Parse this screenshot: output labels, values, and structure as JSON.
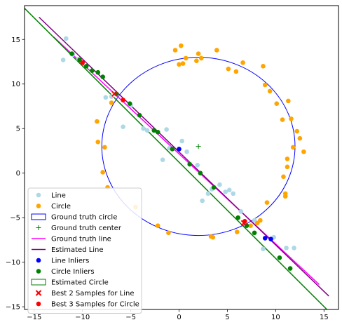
{
  "chart_data": {
    "type": "scatter",
    "title": "",
    "xlabel": "",
    "ylabel": "",
    "xlim": [
      -16,
      16.5
    ],
    "ylim": [
      -15.3,
      18.8
    ],
    "xticks": [
      -15,
      -10,
      -5,
      0,
      5,
      10,
      15
    ],
    "yticks": [
      -15,
      -10,
      -5,
      0,
      5,
      10,
      15
    ],
    "grid": false,
    "legend_position": "lower-left",
    "series": [
      {
        "name": "Line",
        "kind": "scatter",
        "color": "#add8e6",
        "marker": "circle",
        "points": [
          [
            -11.7,
            15.1
          ],
          [
            -12.0,
            12.7
          ],
          [
            -11.0,
            13.3
          ],
          [
            -10.4,
            12.8
          ],
          [
            -7.6,
            8.5
          ],
          [
            -7.0,
            8.6
          ],
          [
            -5.8,
            5.2
          ],
          [
            -5.0,
            7.6
          ],
          [
            -3.7,
            5.0
          ],
          [
            -3.3,
            4.8
          ],
          [
            -1.3,
            4.9
          ],
          [
            -1.0,
            2.8
          ],
          [
            -1.7,
            1.5
          ],
          [
            0.3,
            3.6
          ],
          [
            0.8,
            2.4
          ],
          [
            1.9,
            0.9
          ],
          [
            2.4,
            -3.1
          ],
          [
            3.4,
            -1.8
          ],
          [
            3.0,
            -2.3
          ],
          [
            4.2,
            -1.3
          ],
          [
            4.8,
            -2.1
          ],
          [
            5.2,
            -1.9
          ],
          [
            5.6,
            -2.3
          ],
          [
            6.4,
            -4.3
          ],
          [
            7.8,
            -5.3
          ],
          [
            8.7,
            -8.5
          ],
          [
            9.8,
            -7.2
          ],
          [
            11.1,
            -8.4
          ],
          [
            11.9,
            -8.4
          ]
        ]
      },
      {
        "name": "Circle",
        "kind": "scatter",
        "color": "#ffa500",
        "marker": "circle",
        "points": [
          [
            -0.4,
            13.8
          ],
          [
            0.2,
            14.3
          ],
          [
            2.0,
            13.4
          ],
          [
            3.9,
            13.8
          ],
          [
            0.7,
            12.9
          ],
          [
            0.4,
            12.3
          ],
          [
            0.0,
            12.2
          ],
          [
            1.8,
            12.6
          ],
          [
            2.3,
            12.9
          ],
          [
            5.1,
            11.7
          ],
          [
            5.9,
            11.4
          ],
          [
            6.6,
            12.4
          ],
          [
            8.7,
            12.0
          ],
          [
            8.9,
            9.9
          ],
          [
            9.4,
            9.2
          ],
          [
            10.1,
            7.8
          ],
          [
            10.7,
            6.0
          ],
          [
            11.3,
            8.1
          ],
          [
            11.6,
            6.1
          ],
          [
            12.2,
            4.7
          ],
          [
            12.5,
            3.9
          ],
          [
            12.9,
            2.4
          ],
          [
            11.8,
            2.9
          ],
          [
            11.2,
            1.6
          ],
          [
            11.2,
            0.7
          ],
          [
            10.8,
            -0.4
          ],
          [
            11.0,
            -2.3
          ],
          [
            11.0,
            -2.6
          ],
          [
            9.1,
            -3.3
          ],
          [
            8.4,
            -5.3
          ],
          [
            8.1,
            -5.6
          ],
          [
            7.4,
            -5.9
          ],
          [
            6.0,
            -6.6
          ],
          [
            3.5,
            -7.2
          ],
          [
            3.3,
            -7.1
          ],
          [
            -1.1,
            -6.7
          ],
          [
            -2.2,
            -5.9
          ],
          [
            -7.4,
            -1.6
          ],
          [
            -7.9,
            0.1
          ],
          [
            -8.4,
            3.5
          ],
          [
            -8.5,
            5.8
          ],
          [
            -7.7,
            2.9
          ],
          [
            -7.0,
            7.9
          ],
          [
            -4.5,
            -3.8
          ]
        ]
      },
      {
        "name": "Line Inliers",
        "kind": "scatter",
        "color": "#0000ff",
        "marker": "circle",
        "points": [
          [
            0.0,
            2.7
          ],
          [
            8.9,
            -7.3
          ],
          [
            9.5,
            -7.4
          ]
        ]
      },
      {
        "name": "Circle Inliers",
        "kind": "scatter",
        "color": "#008000",
        "marker": "circle",
        "points": [
          [
            -11.1,
            13.4
          ],
          [
            -10.3,
            12.7
          ],
          [
            -9.6,
            12.0
          ],
          [
            -9.0,
            11.5
          ],
          [
            -8.4,
            11.3
          ],
          [
            -7.9,
            10.8
          ],
          [
            -6.5,
            8.9
          ],
          [
            -5.1,
            7.8
          ],
          [
            -4.1,
            6.5
          ],
          [
            -2.6,
            4.8
          ],
          [
            -2.2,
            4.6
          ],
          [
            -0.7,
            2.7
          ],
          [
            1.1,
            1.0
          ],
          [
            2.2,
            0.0
          ],
          [
            3.6,
            -1.6
          ],
          [
            6.1,
            -5.0
          ],
          [
            7.0,
            -5.9
          ],
          [
            7.8,
            -6.7
          ],
          [
            10.4,
            -9.5
          ],
          [
            11.5,
            -10.7
          ]
        ]
      },
      {
        "name": "Best 3 Samples for Circle",
        "kind": "scatter",
        "color": "#ff0000",
        "marker": "circle",
        "points": [
          [
            -10.0,
            12.4
          ],
          [
            -5.8,
            8.2
          ],
          [
            6.8,
            -5.4
          ]
        ]
      },
      {
        "name": "Best 2 Samples for Line",
        "kind": "scatter",
        "color": "#ff0000",
        "marker": "x",
        "points": [
          [
            -6.7,
            8.9
          ],
          [
            6.7,
            -5.6
          ]
        ]
      },
      {
        "name": "Ground truth line",
        "kind": "line",
        "color": "#ff00ff",
        "points": [
          [
            -13.0,
            15.3
          ],
          [
            14.5,
            -12.5
          ]
        ]
      },
      {
        "name": "Estimated Line",
        "kind": "line",
        "color": "#800080",
        "points": [
          [
            -14.5,
            17.5
          ],
          [
            15.5,
            -13.8
          ]
        ]
      },
      {
        "name": "Ground truth line (green)",
        "kind": "line",
        "color": "#008000",
        "points": [
          [
            -16.0,
            18.5
          ],
          [
            15.3,
            -15.3
          ]
        ]
      }
    ],
    "circles": [
      {
        "name": "Ground truth circle",
        "center": [
          2.0,
          3.0
        ],
        "radius": 10.0,
        "color": "#0000ff"
      }
    ],
    "center_marker": {
      "name": "Ground truth center",
      "point": [
        2.0,
        3.0
      ],
      "color": "#008000",
      "marker": "+"
    },
    "legend": [
      {
        "label": "Line",
        "type": "dot",
        "color": "#add8e6"
      },
      {
        "label": "Circle",
        "type": "dot",
        "color": "#ffa500"
      },
      {
        "label": "Ground truth circle",
        "type": "rect",
        "color": "#0000ff"
      },
      {
        "label": "Ground truth center",
        "type": "plus",
        "color": "#008000"
      },
      {
        "label": "Ground truth line",
        "type": "line",
        "color": "#ff00ff"
      },
      {
        "label": "Estimated Line",
        "type": "line",
        "color": "#800080"
      },
      {
        "label": "Line Inliers",
        "type": "dot",
        "color": "#0000ff"
      },
      {
        "label": "Circle Inliers",
        "type": "dot",
        "color": "#008000"
      },
      {
        "label": "Estimated Circle",
        "type": "rect",
        "color": "#008000"
      },
      {
        "label": "Best 2 Samples for Line",
        "type": "x",
        "color": "#ff0000"
      },
      {
        "label": "Best 3 Samples for Circle",
        "type": "dot",
        "color": "#ff0000"
      }
    ]
  }
}
